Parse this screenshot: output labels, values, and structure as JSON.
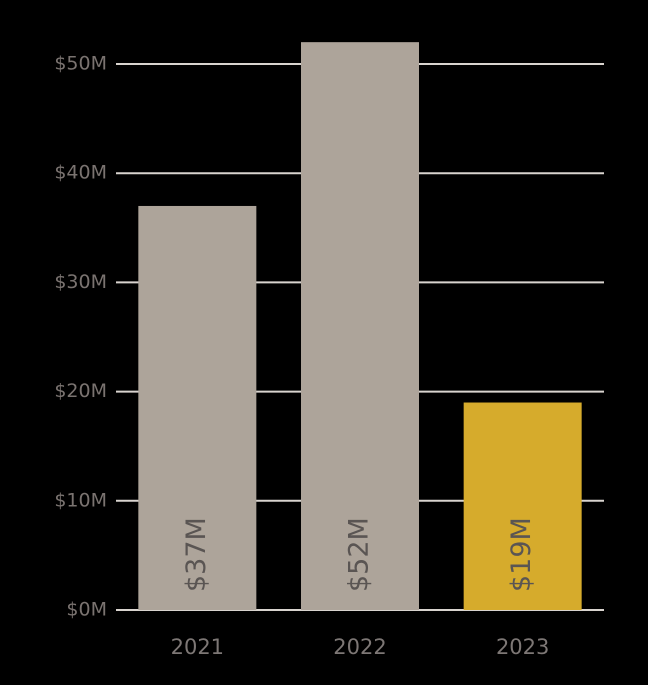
{
  "chart_data": {
    "type": "bar",
    "categories": [
      "2021",
      "2022",
      "2023"
    ],
    "values": [
      37,
      52,
      19
    ],
    "value_labels": [
      "$37M",
      "$52M",
      "$19M"
    ],
    "colors": [
      "#ada49a",
      "#ada49a",
      "#d6ab2c"
    ],
    "ylim": [
      0,
      50
    ],
    "yticks": [
      {
        "value": 0,
        "label": "$0M"
      },
      {
        "value": 10,
        "label": "$10M"
      },
      {
        "value": 20,
        "label": "$20M"
      },
      {
        "value": 30,
        "label": "$30M"
      },
      {
        "value": 40,
        "label": "$40M"
      },
      {
        "value": 50,
        "label": "$50M"
      }
    ],
    "grid": true
  }
}
